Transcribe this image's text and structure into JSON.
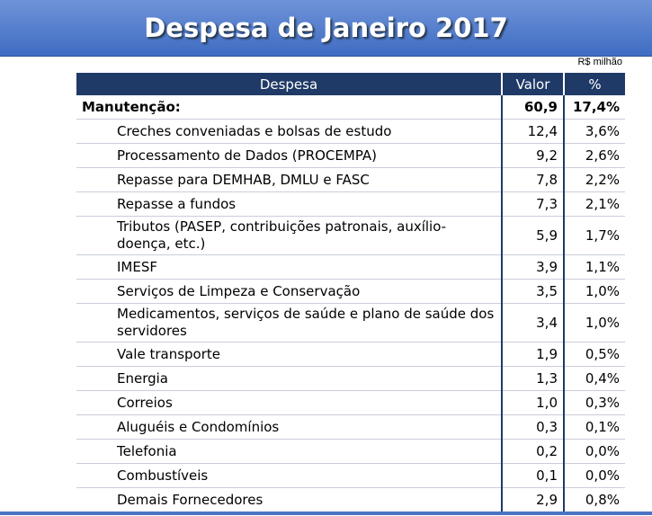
{
  "header": {
    "title": "Despesa de Janeiro 2017"
  },
  "unit": "R$ milhão",
  "table": {
    "columns": [
      "Despesa",
      "Valor",
      "%"
    ],
    "rows": [
      [
        "Manutenção:",
        "60,9",
        "17,4%"
      ],
      [
        "Creches conveniadas e bolsas de estudo",
        "12,4",
        "3,6%"
      ],
      [
        "Processamento de Dados (PROCEMPA)",
        "9,2",
        "2,6%"
      ],
      [
        "Repasse para DEMHAB, DMLU e FASC",
        "7,8",
        "2,2%"
      ],
      [
        "Repasse a fundos",
        "7,3",
        "2,1%"
      ],
      [
        "Tributos (PASEP, contribuições patronais, auxílio-doença, etc.)",
        "5,9",
        "1,7%"
      ],
      [
        "IMESF",
        "3,9",
        "1,1%"
      ],
      [
        "Serviços de Limpeza e Conservação",
        "3,5",
        "1,0%"
      ],
      [
        "Medicamentos, serviços de saúde e plano de saúde dos servidores",
        "3,4",
        "1,0%"
      ],
      [
        "Vale transporte",
        "1,9",
        "0,5%"
      ],
      [
        "Energia",
        "1,3",
        "0,4%"
      ],
      [
        "Correios",
        "1,0",
        "0,3%"
      ],
      [
        "Aluguéis e Condomínios",
        "0,3",
        "0,1%"
      ],
      [
        "Telefonia",
        "0,2",
        "0,0%"
      ],
      [
        "Combustíveis",
        "0,1",
        "0,0%"
      ],
      [
        "Demais Fornecedores",
        "2,9",
        "0,8%"
      ]
    ]
  }
}
